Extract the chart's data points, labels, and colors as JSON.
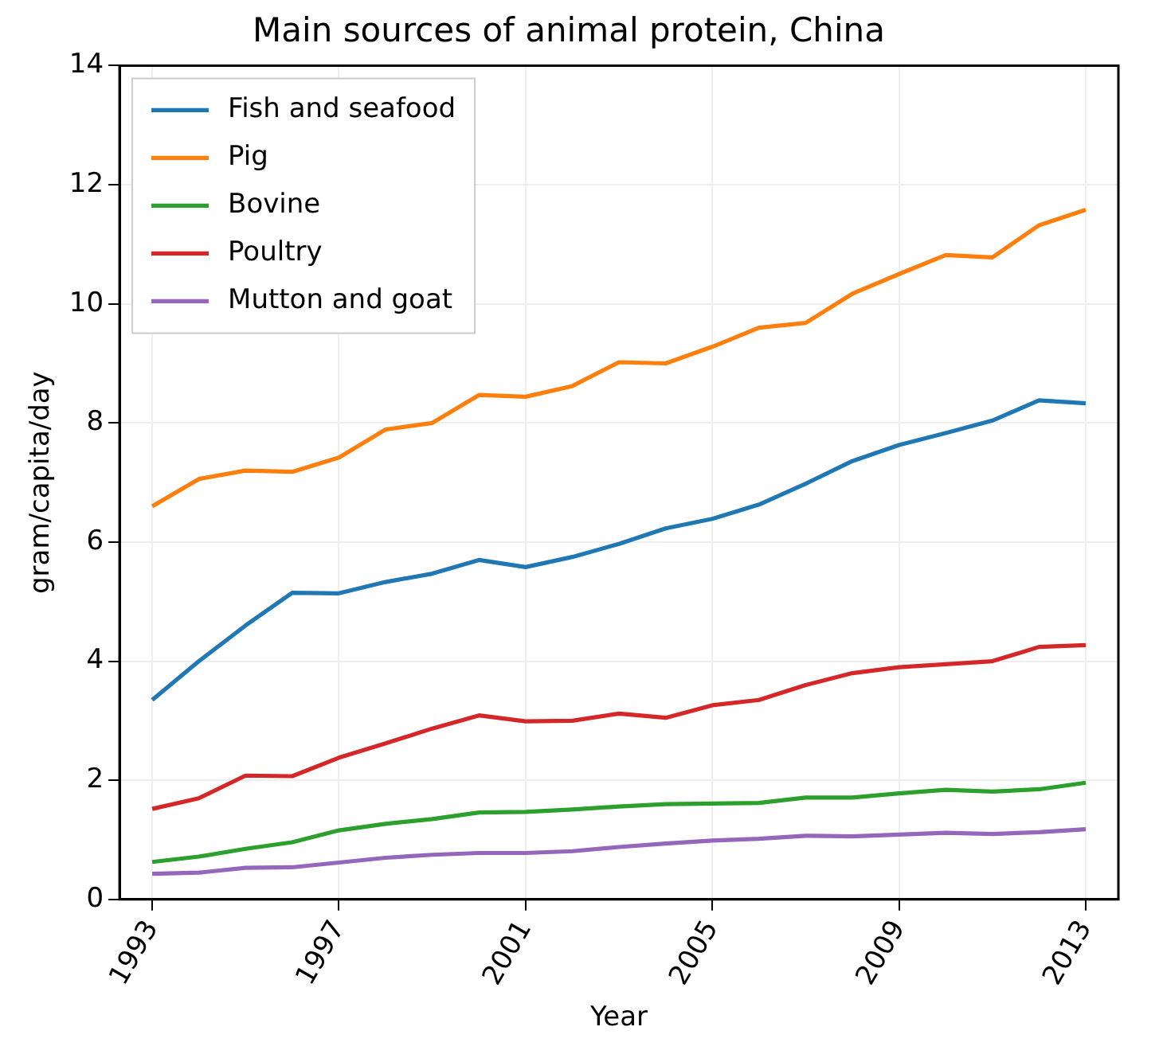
{
  "chart_data": {
    "type": "line",
    "title": "Main sources of animal protein, China",
    "xlabel": "Year",
    "ylabel": "gram/capita/day",
    "x": [
      1993,
      1994,
      1995,
      1996,
      1997,
      1998,
      1999,
      2000,
      2001,
      2002,
      2003,
      2004,
      2005,
      2006,
      2007,
      2008,
      2009,
      2010,
      2011,
      2012,
      2013
    ],
    "series": [
      {
        "name": "Fish and seafood",
        "color": "#1f77b4",
        "values": [
          3.35,
          4.0,
          4.6,
          5.15,
          5.14,
          5.33,
          5.47,
          5.7,
          5.58,
          5.75,
          5.97,
          6.23,
          6.39,
          6.63,
          6.98,
          7.36,
          7.63,
          7.83,
          8.04,
          8.38,
          8.33
        ]
      },
      {
        "name": "Pig",
        "color": "#ff7f0e",
        "values": [
          6.6,
          7.06,
          7.2,
          7.18,
          7.42,
          7.89,
          8.0,
          8.47,
          8.44,
          8.62,
          9.02,
          9.0,
          9.28,
          9.6,
          9.68,
          10.17,
          10.5,
          10.82,
          10.78,
          11.32,
          11.58
        ]
      },
      {
        "name": "Bovine",
        "color": "#2ca02c",
        "values": [
          0.63,
          0.72,
          0.85,
          0.96,
          1.16,
          1.27,
          1.35,
          1.46,
          1.47,
          1.51,
          1.56,
          1.6,
          1.61,
          1.62,
          1.71,
          1.71,
          1.78,
          1.84,
          1.81,
          1.85,
          1.96
        ]
      },
      {
        "name": "Poultry",
        "color": "#d62728",
        "values": [
          1.52,
          1.7,
          2.08,
          2.07,
          2.38,
          2.62,
          2.87,
          3.09,
          2.99,
          3.0,
          3.12,
          3.05,
          3.26,
          3.35,
          3.6,
          3.8,
          3.9,
          3.95,
          4.0,
          4.24,
          4.27
        ]
      },
      {
        "name": "Mutton and goat",
        "color": "#9467bd",
        "values": [
          0.43,
          0.45,
          0.53,
          0.54,
          0.62,
          0.7,
          0.75,
          0.78,
          0.78,
          0.81,
          0.88,
          0.94,
          0.99,
          1.02,
          1.07,
          1.06,
          1.09,
          1.12,
          1.1,
          1.13,
          1.18
        ]
      }
    ],
    "xlim": [
      1992.3,
      2013.7
    ],
    "xticks": [
      1993,
      1997,
      2001,
      2005,
      2009,
      2013
    ],
    "ylim": [
      0,
      14
    ],
    "yticks": [
      0,
      2,
      4,
      6,
      8,
      10,
      12,
      14
    ],
    "grid": true,
    "legend": "top left",
    "marker": "none",
    "line_style": "solid"
  }
}
